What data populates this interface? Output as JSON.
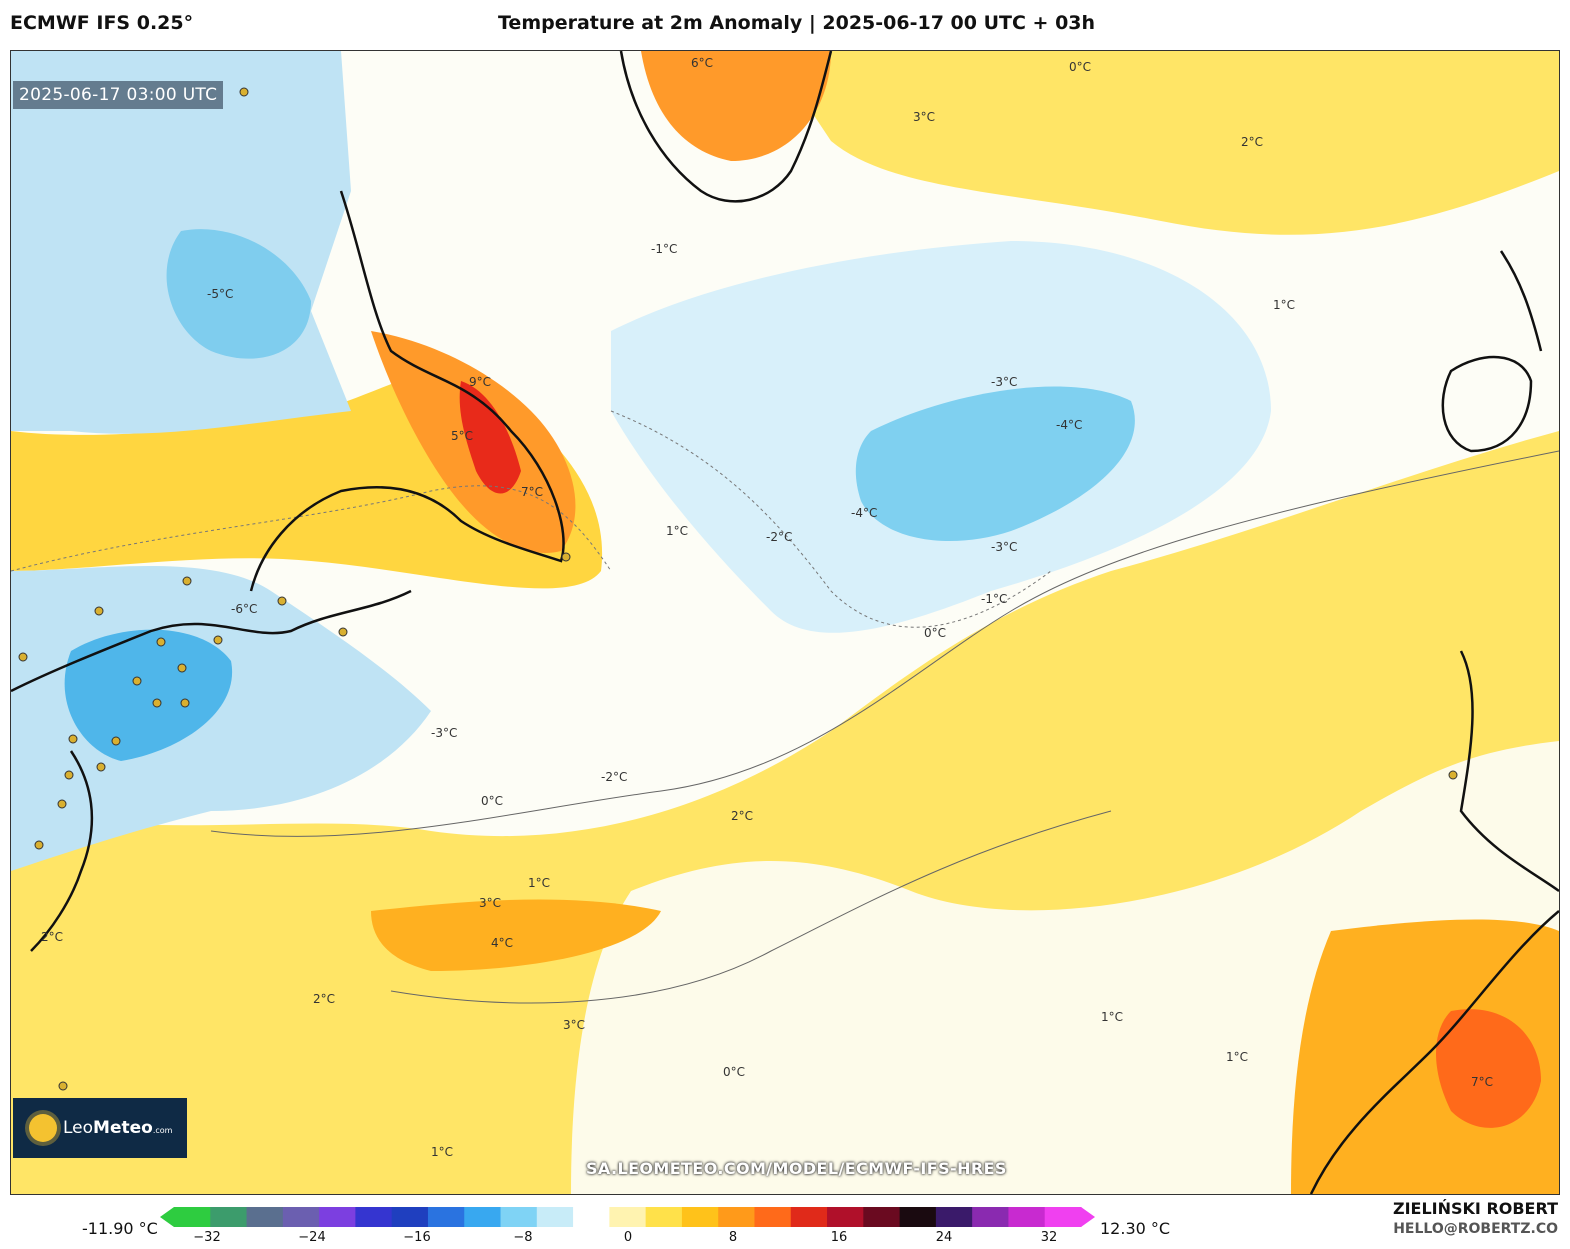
{
  "header": {
    "model": "ECMWF IFS 0.25°",
    "title": "Temperature at 2m Anomaly | 2025-06-17 00 UTC + 03h"
  },
  "map": {
    "valid_time": "2025-06-17 03:00 UTC",
    "source_url": "SA.LEOMETEO.COM/MODEL/ECMWF-IFS-HRES",
    "contour_labels": [
      "-4°C",
      "-3°C",
      "-2°C",
      "-1°C",
      "0°C",
      "1°C",
      "2°C",
      "3°C",
      "4°C",
      "5°C",
      "6°C",
      "7°C",
      "9°C",
      "-5°C",
      "-6°C"
    ]
  },
  "logo": {
    "brand_light": "Leo",
    "brand_bold": "Meteo",
    "suffix": ".com"
  },
  "colorbar": {
    "min_label": "-11.90 °C",
    "max_label": "12.30 °C",
    "ticks": [
      "−32",
      "−24",
      "−16",
      "−8",
      "0",
      "8",
      "16",
      "24",
      "32"
    ],
    "colors": [
      "#2ecc40",
      "#3c9c6c",
      "#5a6f8f",
      "#6b5fb0",
      "#7c3fe0",
      "#3535d0",
      "#1f3fbf",
      "#2a73e0",
      "#38a8f0",
      "#7fd3f5",
      "#c8ecf8",
      "#ffffff",
      "#fff3b0",
      "#ffe14a",
      "#ffc21a",
      "#ff9a1a",
      "#ff6a1a",
      "#e02a1a",
      "#b0102a",
      "#6a0a20",
      "#1a0a10",
      "#3a1a6a",
      "#8a2ab0",
      "#c82ad0",
      "#f040f0"
    ]
  },
  "credit": {
    "name": "ZIELIŃSKI ROBERT",
    "email": "HELLO@ROBERTZ.CO"
  }
}
